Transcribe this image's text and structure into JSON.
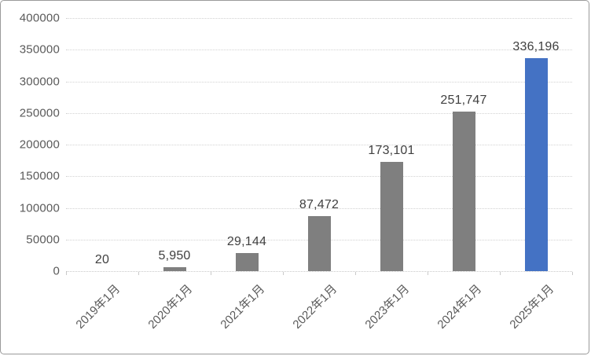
{
  "chart_data": {
    "type": "bar",
    "categories": [
      "2019年1月",
      "2020年1月",
      "2021年1月",
      "2022年1月",
      "2023年1月",
      "2024年1月",
      "2025年1月"
    ],
    "values": [
      20,
      5950,
      29144,
      87472,
      173101,
      251747,
      336196
    ],
    "value_labels": [
      "20",
      "5,950",
      "29,144",
      "87,472",
      "173,101",
      "251,747",
      "336,196"
    ],
    "title": "",
    "xlabel": "",
    "ylabel": "",
    "ylim": [
      0,
      400000
    ],
    "ytick_step": 50000,
    "ytick_labels": [
      "0",
      "50000",
      "100000",
      "150000",
      "200000",
      "250000",
      "300000",
      "350000",
      "400000"
    ],
    "grid": true,
    "gridline_style": "dotted",
    "legend": "none",
    "colors": {
      "bar_default": "#7f7f7f",
      "bar_highlight": "#4472c4",
      "gridline": "#d2d2d2",
      "axis_text": "#5a5a5a",
      "value_label_text": "#404040"
    },
    "highlight_index": 6,
    "bar_color_per_point": [
      "#7f7f7f",
      "#7f7f7f",
      "#7f7f7f",
      "#7f7f7f",
      "#7f7f7f",
      "#7f7f7f",
      "#4472c4"
    ]
  }
}
